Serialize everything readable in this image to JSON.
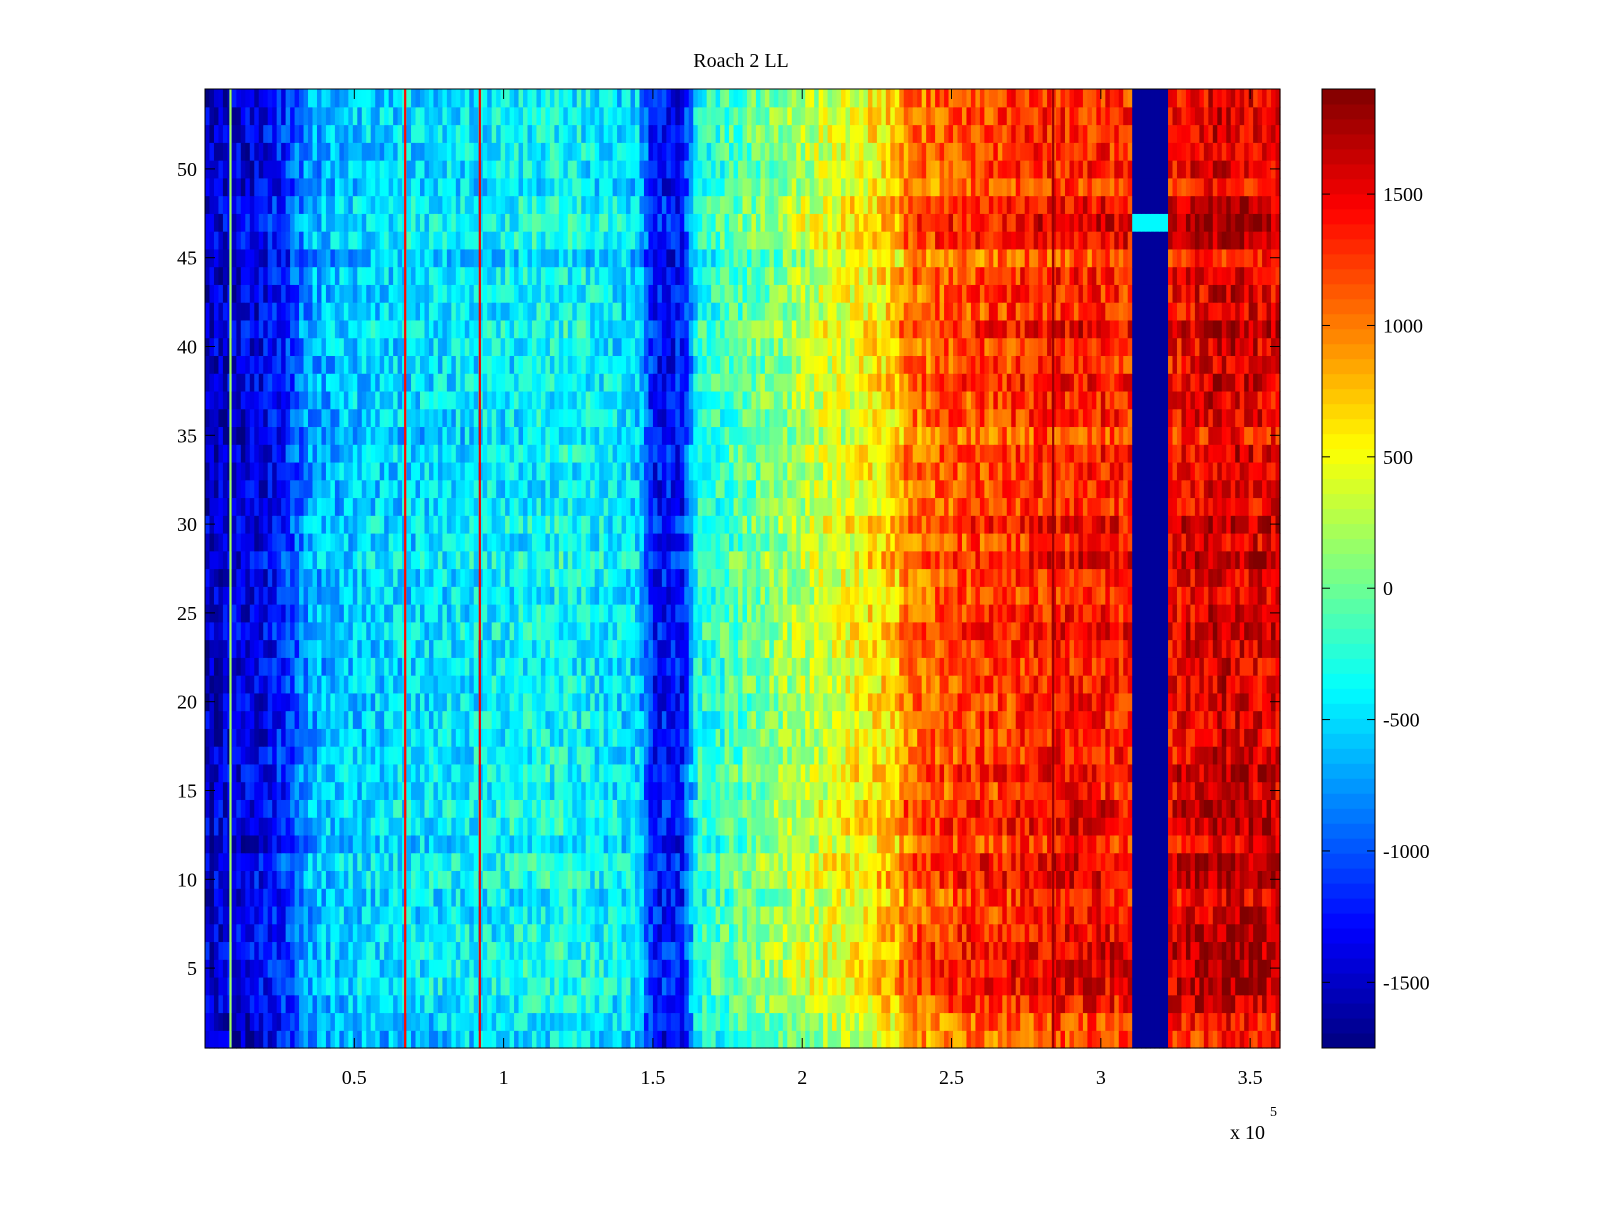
{
  "chart_data": {
    "type": "heatmap",
    "title": "Roach 2 LL",
    "xlabel": "",
    "ylabel": "",
    "x_exponent_label": "x 10",
    "x_exponent_power": "5",
    "xlim": [
      0,
      360000
    ],
    "ylim": [
      0.5,
      54.5
    ],
    "n_rows": 54,
    "x_ticks": [
      {
        "value": 50000,
        "label": "0.5"
      },
      {
        "value": 100000,
        "label": "1"
      },
      {
        "value": 150000,
        "label": "1.5"
      },
      {
        "value": 200000,
        "label": "2"
      },
      {
        "value": 250000,
        "label": "2.5"
      },
      {
        "value": 300000,
        "label": "3"
      },
      {
        "value": 350000,
        "label": "3.5"
      }
    ],
    "y_ticks": [
      {
        "value": 5,
        "label": "5"
      },
      {
        "value": 10,
        "label": "10"
      },
      {
        "value": 15,
        "label": "15"
      },
      {
        "value": 20,
        "label": "20"
      },
      {
        "value": 25,
        "label": "25"
      },
      {
        "value": 30,
        "label": "30"
      },
      {
        "value": 35,
        "label": "35"
      },
      {
        "value": 40,
        "label": "40"
      },
      {
        "value": 45,
        "label": "45"
      },
      {
        "value": 50,
        "label": "50"
      }
    ],
    "colorbar": {
      "colormap": "jet",
      "clim": [
        -1750,
        1900
      ],
      "ticks": [
        {
          "value": 1500,
          "label": "1500"
        },
        {
          "value": 1000,
          "label": "1000"
        },
        {
          "value": 500,
          "label": "500"
        },
        {
          "value": 0,
          "label": "0"
        },
        {
          "value": -500,
          "label": "-500"
        },
        {
          "value": -1000,
          "label": "-1000"
        },
        {
          "value": -1500,
          "label": "-1500"
        }
      ]
    },
    "column_profile": {
      "x": [
        0,
        9000,
        20000,
        28000,
        35000,
        50000,
        70000,
        90000,
        120000,
        145000,
        150000,
        160000,
        165000,
        185000,
        200000,
        215000,
        232000,
        234000,
        250000,
        270000,
        285000,
        300000,
        310000,
        311000,
        322000,
        323000,
        340000,
        360000
      ],
      "values": [
        -1500,
        -1450,
        -1350,
        -1100,
        -700,
        -550,
        -500,
        -450,
        -350,
        -500,
        -1250,
        -1250,
        -300,
        0,
        250,
        450,
        700,
        1000,
        1150,
        1250,
        1350,
        1350,
        1300,
        -1650,
        -1650,
        1400,
        1600,
        1500
      ]
    },
    "notch_band": {
      "x_start": 311000,
      "x_end": 322000,
      "value": -1650,
      "gap_rows": [
        47
      ],
      "gap_value": -400
    },
    "line_features": [
      {
        "x": 8500,
        "value": 200
      },
      {
        "x": 67000,
        "value": 1400
      },
      {
        "x": 92000,
        "value": 1500
      },
      {
        "x": 284000,
        "value": 1800
      }
    ],
    "row_offsets": [
      {
        "row": 1,
        "offset": -150
      },
      {
        "row": 2,
        "offset": -120
      },
      {
        "row": 3,
        "offset": 80
      },
      {
        "row": 4,
        "offset": 150
      },
      {
        "row": 5,
        "offset": 200
      },
      {
        "row": 6,
        "offset": 150
      },
      {
        "row": 7,
        "offset": 120
      },
      {
        "row": 10,
        "offset": 150
      },
      {
        "row": 11,
        "offset": 150
      },
      {
        "row": 13,
        "offset": 130
      },
      {
        "row": 14,
        "offset": 140
      },
      {
        "row": 16,
        "offset": 100
      },
      {
        "row": 24,
        "offset": 110
      },
      {
        "row": 28,
        "offset": 100
      },
      {
        "row": 30,
        "offset": 140
      },
      {
        "row": 35,
        "offset": -120
      },
      {
        "row": 38,
        "offset": 100
      },
      {
        "row": 41,
        "offset": 140
      },
      {
        "row": 45,
        "offset": -150
      },
      {
        "row": 46,
        "offset": 150
      },
      {
        "row": 47,
        "offset": 180
      },
      {
        "row": 48,
        "offset": 150
      },
      {
        "row": 49,
        "offset": -100
      }
    ],
    "noise_amplitude": 320,
    "grid": false,
    "colors": {
      "background": "#ffffff",
      "axis": "#000000"
    }
  }
}
